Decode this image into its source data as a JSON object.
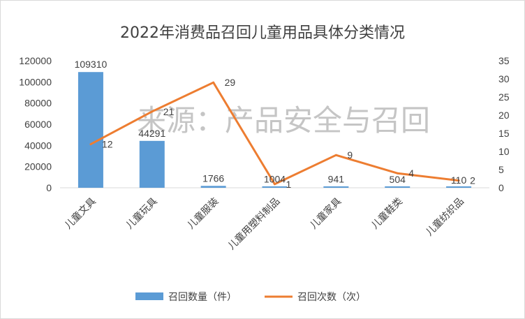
{
  "chart_data": {
    "type": "bar+line",
    "title": "2022年消费品召回儿童用品具体分类情况",
    "watermark": "来源：产品安全与召回",
    "categories": [
      "儿童文具",
      "儿童玩具",
      "儿童服装",
      "儿童用塑料制品",
      "儿童家具",
      "儿童鞋类",
      "儿童纺织品"
    ],
    "series": [
      {
        "name": "召回数量（件）",
        "type": "bar",
        "axis": "left",
        "color": "#5b9bd5",
        "values": [
          109310,
          44291,
          1766,
          1004,
          941,
          504,
          110
        ]
      },
      {
        "name": "召回次数（次）",
        "type": "line",
        "axis": "right",
        "color": "#ed7d31",
        "values": [
          12,
          21,
          29,
          1,
          9,
          4,
          2
        ]
      }
    ],
    "y_left": {
      "lim": [
        0,
        120000
      ],
      "ticks": [
        "0",
        "20000",
        "40000",
        "60000",
        "80000",
        "100000",
        "120000"
      ]
    },
    "y_right": {
      "lim": [
        0,
        35
      ],
      "ticks": [
        "0",
        "5",
        "10",
        "15",
        "20",
        "25",
        "30",
        "35"
      ]
    },
    "legend_position": "bottom",
    "grid": false
  }
}
